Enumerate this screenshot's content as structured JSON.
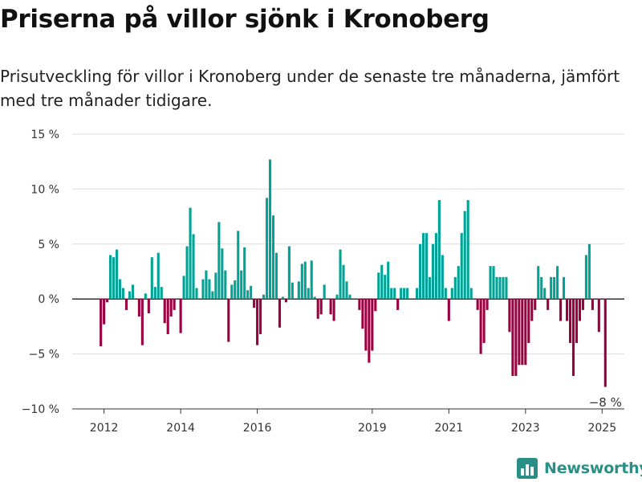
{
  "header": {
    "title": "Priserna på villor sjönk i Kronoberg",
    "subtitle": "Prisutveckling för villor i Kronoberg under de senaste tre månaderna, jämfört med tre månader tidigare."
  },
  "brand": {
    "name": "Newsworthy",
    "logo_icon": "bar-chart-logo-icon"
  },
  "colors": {
    "positive": "#00a396",
    "negative": "#9b0041",
    "grid": "#dddddd",
    "axis": "#333333",
    "brand": "#2a8f86"
  },
  "chart_data": {
    "type": "bar",
    "title": "Priserna på villor sjönk i Kronoberg",
    "subtitle": "Prisutveckling för villor i Kronoberg under de senaste tre månaderna, jämfört med tre månader tidigare.",
    "xlabel": "",
    "ylabel": "",
    "ylim": [
      -10,
      15
    ],
    "y_ticks": [
      15,
      10,
      5,
      0,
      -5,
      -10
    ],
    "y_tick_labels": [
      "15 %",
      "10 %",
      "5 %",
      "0 %",
      "−5 %",
      "−10 %"
    ],
    "x_ticks": [
      2012,
      2014,
      2016,
      2019,
      2021,
      2023,
      2025
    ],
    "x_tick_labels": [
      "2012",
      "2014",
      "2016",
      "2019",
      "2021",
      "2023",
      "2025"
    ],
    "x_range": [
      2011.17,
      2025.58
    ],
    "grid": "horizontal",
    "legend": "none",
    "last_value_label": "−8 %",
    "series": [
      {
        "start": "2011-12",
        "values": [
          -4.3,
          -2.3,
          -0.3,
          4.0,
          3.8,
          4.5,
          1.8,
          1.0,
          -1.0,
          0.7,
          1.3,
          0.0,
          -1.6,
          -4.2,
          0.5,
          -1.3,
          3.8,
          1.1,
          4.2,
          1.1,
          -2.2,
          -3.2,
          -1.6,
          -1.0,
          0.0,
          -3.1,
          2.1,
          4.8,
          8.3,
          5.9,
          1.0,
          0.0,
          1.8,
          2.6,
          1.8,
          0.7,
          2.4,
          7.0,
          4.6,
          2.6,
          -3.9,
          1.3,
          1.7,
          6.2,
          2.6,
          4.7,
          0.8,
          1.2,
          -0.8,
          -4.2,
          -3.2,
          0.4,
          9.2,
          12.7,
          7.6,
          4.2,
          -2.6,
          0.2,
          -0.3,
          4.8,
          1.5,
          0.0,
          1.6,
          3.2,
          3.4,
          1.0,
          3.5,
          0.2,
          -1.8,
          -1.4,
          1.3,
          0.0,
          -1.4,
          -2.0,
          0.4,
          4.5,
          3.1,
          1.6,
          0.4,
          0.0,
          0.0,
          -1.0,
          -2.7,
          -4.7,
          -5.8,
          -4.7,
          -1.1,
          2.4,
          3.1,
          2.2,
          3.4,
          1.0,
          1.0,
          -1.0,
          1.0,
          1.0,
          1.0,
          0.0,
          0.0,
          1.0,
          5.0,
          6.0,
          6.0,
          2.0,
          5.0,
          6.0,
          9.0,
          4.0,
          1.0,
          -2.0,
          1.0,
          2.0,
          3.0,
          6.0,
          8.0,
          9.0,
          1.0,
          0.0,
          -1.0,
          -5.0,
          -4.0,
          -1.0,
          3.0,
          3.0,
          2.0,
          2.0,
          2.0,
          2.0,
          -3.0,
          -7.0,
          -7.0,
          -6.0,
          -6.0,
          -6.0,
          -4.0,
          -2.0,
          -1.0,
          3.0,
          2.0,
          1.0,
          -1.0,
          2.0,
          2.0,
          3.0,
          -2.0,
          2.0,
          -2.0,
          -4.0,
          -7.0,
          -4.0,
          -2.0,
          -1.0,
          4.0,
          5.0,
          -1.0,
          0.0,
          -3.0,
          0.0,
          -8.0
        ]
      }
    ]
  }
}
